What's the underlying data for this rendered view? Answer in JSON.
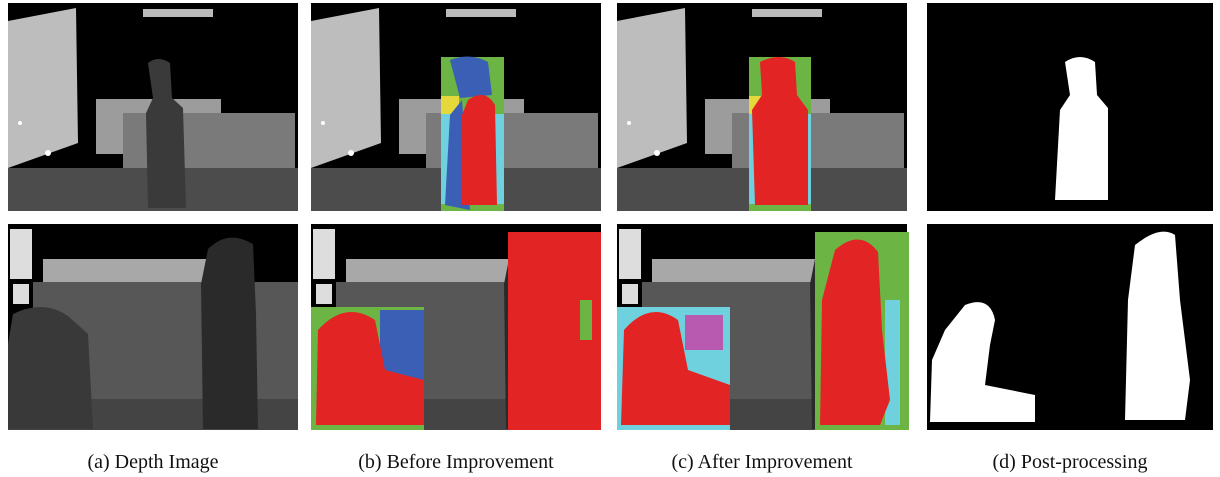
{
  "figure": {
    "captions": [
      "(a) Depth Image",
      "(b) Before Improvement",
      "(c) After Improvement",
      "(d) Post-processing"
    ]
  }
}
